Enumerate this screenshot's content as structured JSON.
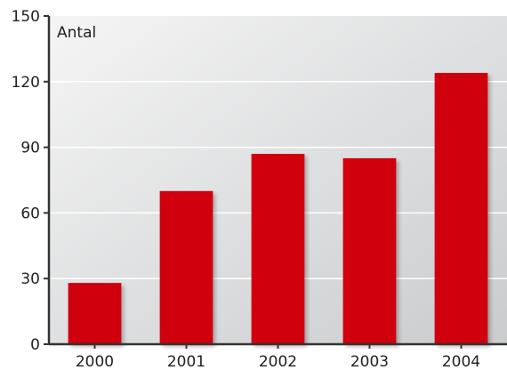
{
  "chart_data": {
    "type": "bar",
    "ylabel": "Antal",
    "categories": [
      "2000",
      "2001",
      "2002",
      "2003",
      "2004"
    ],
    "values": [
      28,
      70,
      87,
      85,
      124
    ],
    "ylim": [
      0,
      150
    ],
    "yticks": [
      0,
      30,
      60,
      90,
      120,
      150
    ],
    "grid": true,
    "colors": {
      "bar": "#d0000e",
      "axis": "#333333",
      "grid": "#ffffff",
      "background_light": "#f4f4f4",
      "background_dark": "#cfd1d3"
    }
  }
}
